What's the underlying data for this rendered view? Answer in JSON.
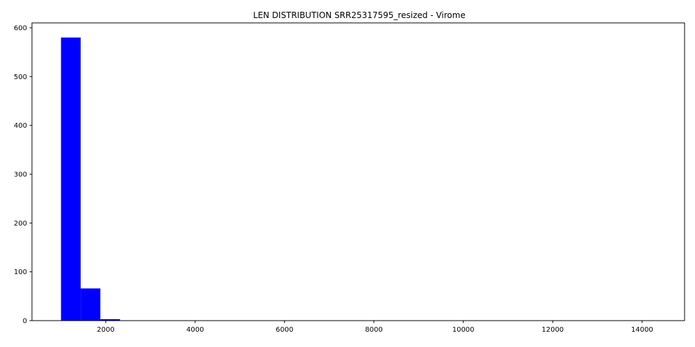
{
  "chart_data": {
    "type": "bar",
    "title": "LEN DISTRIBUTION SRR25317595_resized - Virome",
    "xlabel": "",
    "ylabel": "",
    "bar_color": "#0000ff",
    "grid": false,
    "xlim": [
      350,
      14950
    ],
    "ylim": [
      0,
      610
    ],
    "x_ticks": [
      2000,
      4000,
      6000,
      8000,
      10000,
      12000,
      14000
    ],
    "y_ticks": [
      0,
      100,
      200,
      300,
      400,
      500,
      600
    ],
    "bins": [
      {
        "x0": 1000,
        "x1": 1440,
        "count": 580
      },
      {
        "x0": 1440,
        "x1": 1880,
        "count": 66
      },
      {
        "x0": 1880,
        "x1": 2320,
        "count": 3
      },
      {
        "x0": 2320,
        "x1": 2760,
        "count": 0
      },
      {
        "x0": 2760,
        "x1": 3200,
        "count": 0
      },
      {
        "x0": 3200,
        "x1": 3640,
        "count": 0
      },
      {
        "x0": 3640,
        "x1": 4080,
        "count": 0
      },
      {
        "x0": 4080,
        "x1": 4520,
        "count": 0
      },
      {
        "x0": 4520,
        "x1": 4960,
        "count": 0
      },
      {
        "x0": 4960,
        "x1": 5400,
        "count": 0
      },
      {
        "x0": 5400,
        "x1": 5840,
        "count": 0
      },
      {
        "x0": 5840,
        "x1": 6280,
        "count": 0
      },
      {
        "x0": 6280,
        "x1": 6720,
        "count": 0
      },
      {
        "x0": 6720,
        "x1": 7160,
        "count": 0
      },
      {
        "x0": 7160,
        "x1": 7600,
        "count": 0
      },
      {
        "x0": 7600,
        "x1": 8040,
        "count": 0
      },
      {
        "x0": 8040,
        "x1": 8480,
        "count": 0
      },
      {
        "x0": 8480,
        "x1": 8920,
        "count": 0
      },
      {
        "x0": 8920,
        "x1": 9360,
        "count": 0
      },
      {
        "x0": 9360,
        "x1": 9800,
        "count": 0
      },
      {
        "x0": 9800,
        "x1": 10240,
        "count": 0
      },
      {
        "x0": 10240,
        "x1": 10680,
        "count": 0
      },
      {
        "x0": 10680,
        "x1": 11120,
        "count": 0
      },
      {
        "x0": 11120,
        "x1": 11560,
        "count": 0
      },
      {
        "x0": 11560,
        "x1": 12000,
        "count": 0
      },
      {
        "x0": 12000,
        "x1": 12440,
        "count": 0
      },
      {
        "x0": 12440,
        "x1": 12880,
        "count": 0
      },
      {
        "x0": 12880,
        "x1": 13320,
        "count": 0
      },
      {
        "x0": 13320,
        "x1": 13760,
        "count": 0
      },
      {
        "x0": 13760,
        "x1": 14200,
        "count": 0
      }
    ]
  }
}
